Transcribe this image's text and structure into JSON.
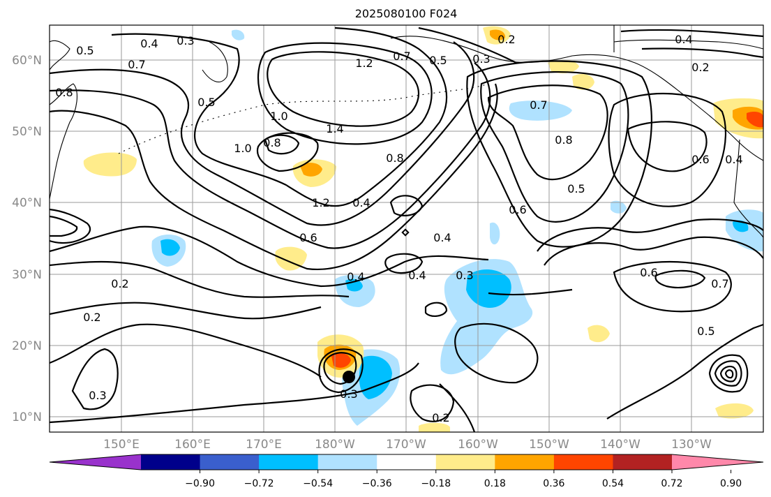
{
  "title": "2025080100 F024",
  "lat_labels": [
    "60°N",
    "50°N",
    "40°N",
    "30°N",
    "20°N",
    "10°N"
  ],
  "lon_labels": [
    "150°E",
    "160°E",
    "170°E",
    "180°W",
    "170°W",
    "160°W",
    "150°W",
    "140°W",
    "130°W"
  ],
  "contour_labels": [
    "0.5",
    "0.4",
    "0.3",
    "0.7",
    "0.8",
    "0.5",
    "1.2",
    "0.7",
    "0.5",
    "0.3",
    "0.2",
    "0.4",
    "0.2",
    "1.0",
    "1.0",
    "0.8",
    "1.4",
    "0.8",
    "0.7",
    "0.8",
    "0.6",
    "0.4",
    "1.2",
    "0.4",
    "0.6",
    "0.5",
    "0.6",
    "0.4",
    "0.2",
    "0.4",
    "0.4",
    "0.3",
    "0.6",
    "0.7",
    "0.2",
    "0.3",
    "0.3",
    "0.2",
    "0.5"
  ],
  "colorbar": {
    "colors": [
      "#9932CC",
      "#00008B",
      "#3A5FCD",
      "#00BFFF",
      "#B0E2FF",
      "#FFFFFF",
      "#FFEC8B",
      "#FFA500",
      "#FF4500",
      "#B22222",
      "#FF88AA"
    ],
    "tick_labels": [
      "−0.90",
      "−0.72",
      "−0.54",
      "−0.36",
      "−0.18",
      "0.18",
      "0.36",
      "0.54",
      "0.72",
      "0.90"
    ]
  }
}
